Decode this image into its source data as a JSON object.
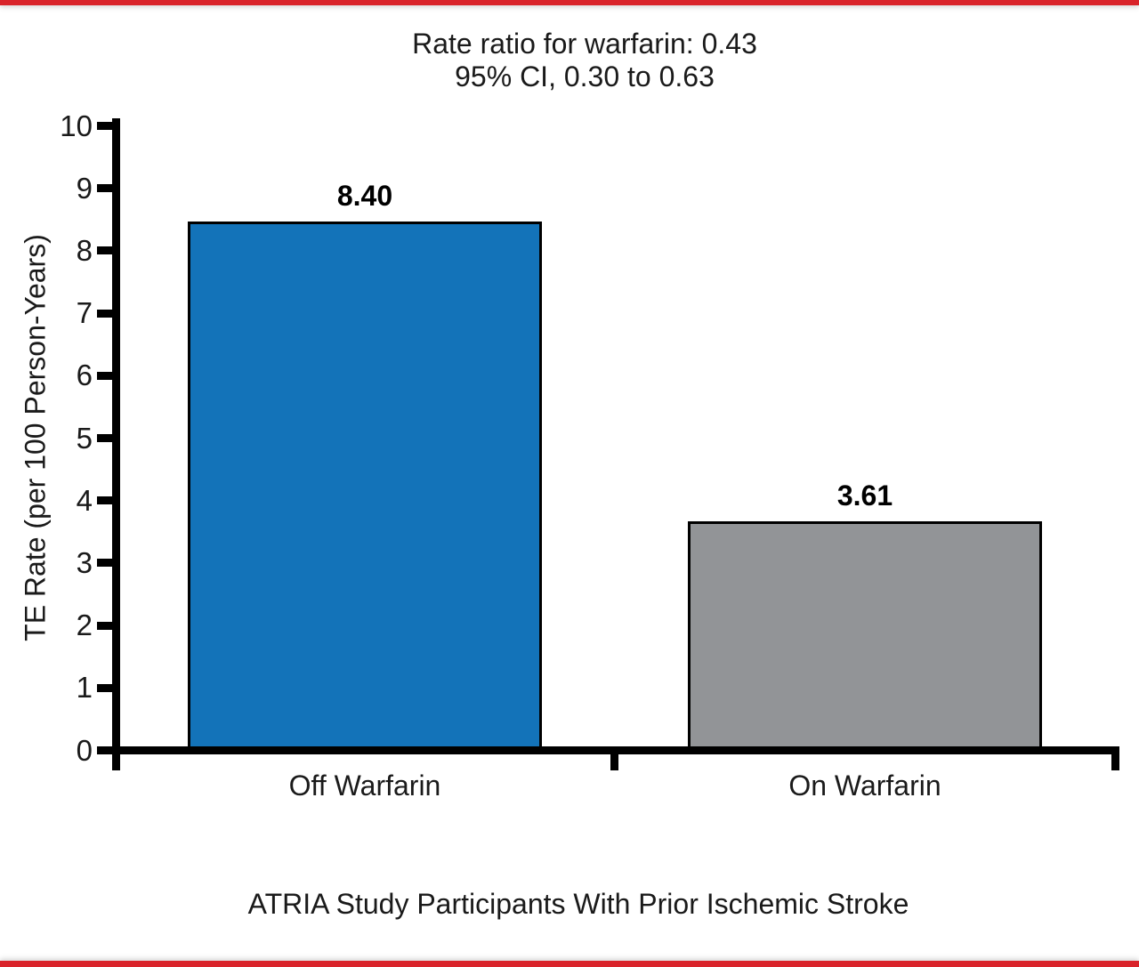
{
  "page": {
    "accent_red": "#d9232a",
    "background": "#ffffff",
    "axis_color": "#000000",
    "text_color": "#1a1a1a"
  },
  "chart_data": {
    "type": "bar",
    "title_lines": [
      "Rate ratio for warfarin: 0.43",
      "95% CI, 0.30 to 0.63"
    ],
    "categories": [
      "Off Warfarin",
      "On Warfarin"
    ],
    "values": [
      8.4,
      3.61
    ],
    "value_labels": [
      "8.40",
      "3.61"
    ],
    "bar_colors": [
      "#1373b9",
      "#929497"
    ],
    "ylabel": "TE Rate (per 100 Person-Years)",
    "xlabel": "",
    "ylim": [
      0,
      10
    ],
    "yticks": [
      0,
      1,
      2,
      3,
      4,
      5,
      6,
      7,
      8,
      9,
      10
    ],
    "grid": false,
    "legend": "none",
    "caption": "ATRIA Study Participants With Prior Ischemic Stroke"
  }
}
